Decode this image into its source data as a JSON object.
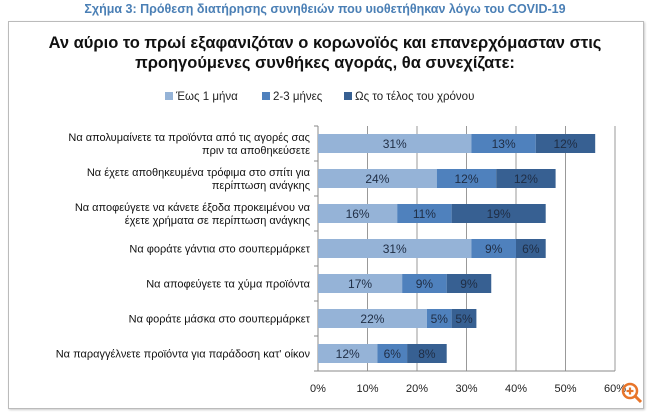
{
  "caption": "Σχήμα 3: Πρόθεση διατήρησης συνηθειών που υιοθετήθηκαν λόγω του COVID-19",
  "chart_data": {
    "type": "bar",
    "orientation": "horizontal",
    "stacked": true,
    "title": "Αν αύριο το πρωί εξαφανιζόταν ο κορωνοϊός και επανερχόμασταν στις προηγούμενες συνθήκες αγοράς, θα συνεχίζατε:",
    "title_lines": [
      "Αν αύριο το πρωί εξαφανιζόταν ο κορωνοϊός και επανερχόμασταν στις",
      "προηγούμενες συνθήκες αγοράς, θα συνεχίζατε:"
    ],
    "categories": [
      [
        "Να απολυμαίνετε τα προϊόντα από τις αγορές σας",
        "πριν τα αποθηκεύσετε"
      ],
      [
        "Να έχετε αποθηκευμένα τρόφιμα στο σπίτι για",
        "περίπτωση ανάγκης"
      ],
      [
        "Να αποφεύγετε να κάνετε έξοδα προκειμένου να",
        "έχετε χρήματα σε περίπτωση ανάγκης"
      ],
      [
        "Να φοράτε γάντια στο σουπερμάρκετ"
      ],
      [
        "Να αποφεύγετε τα χύμα προϊόντα"
      ],
      [
        "Να φοράτε μάσκα στο σουπερμάρκετ"
      ],
      [
        "Να παραγγέλνετε προϊόντα για παράδοση κατ' οίκον"
      ]
    ],
    "series": [
      {
        "name": "Έως 1 μήνα",
        "color": "#95b3d7",
        "values": [
          31,
          24,
          16,
          31,
          17,
          22,
          12
        ]
      },
      {
        "name": "2-3 μήνες",
        "color": "#4f81bd",
        "values": [
          13,
          12,
          11,
          9,
          9,
          5,
          6
        ]
      },
      {
        "name": "Ως το τέλος του χρόνου",
        "color": "#376092",
        "values": [
          12,
          12,
          19,
          6,
          9,
          5,
          8
        ]
      }
    ],
    "xlim": [
      0,
      60
    ],
    "xticks": [
      "0%",
      "10%",
      "20%",
      "30%",
      "40%",
      "50%",
      "60%"
    ],
    "grid": true,
    "legend": "top"
  },
  "zoom_icon": "zoom-in-icon"
}
